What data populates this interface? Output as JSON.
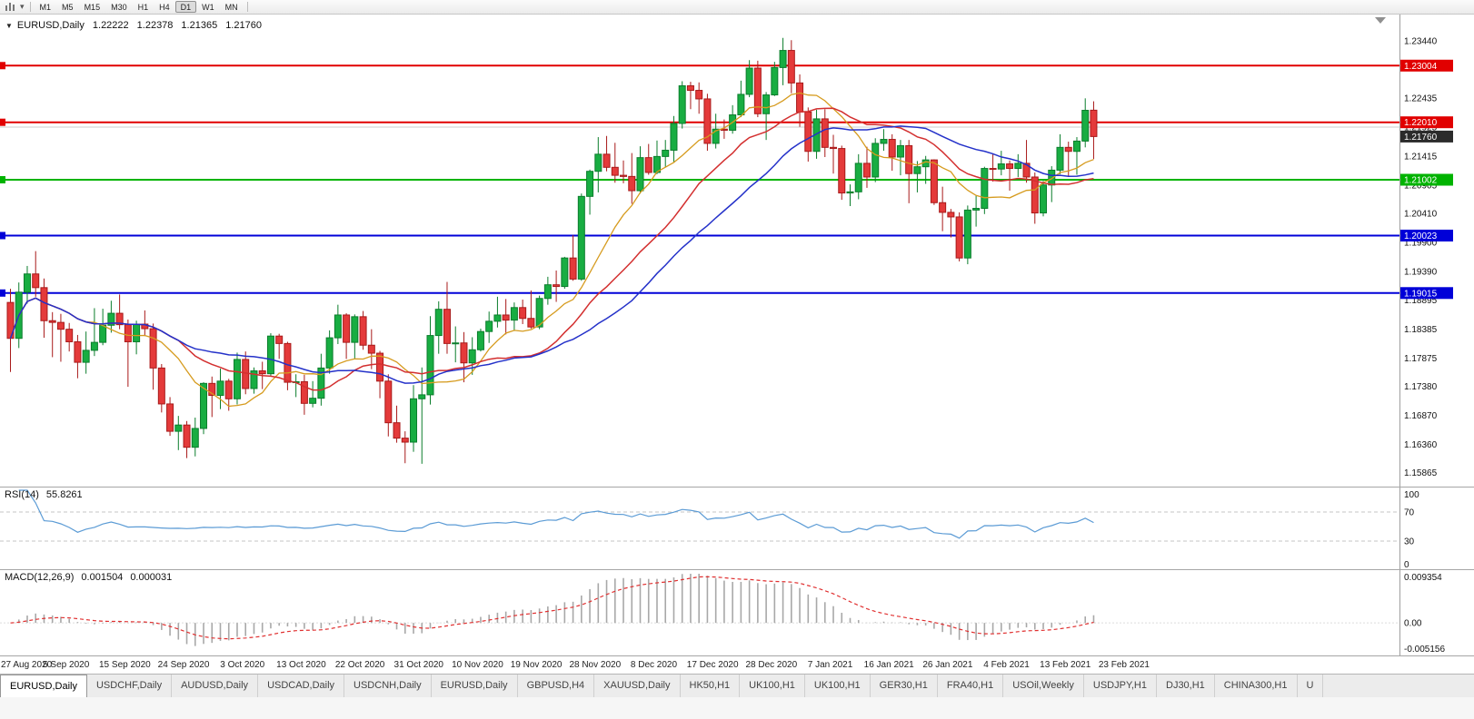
{
  "toolbar": {
    "timeframes": [
      {
        "label": "M1",
        "active": false
      },
      {
        "label": "M5",
        "active": false
      },
      {
        "label": "M15",
        "active": false
      },
      {
        "label": "M30",
        "active": false
      },
      {
        "label": "H1",
        "active": false
      },
      {
        "label": "H4",
        "active": false
      },
      {
        "label": "D1",
        "active": true
      },
      {
        "label": "W1",
        "active": false
      },
      {
        "label": "MN",
        "active": false
      }
    ]
  },
  "chart": {
    "header": {
      "symbol": "EURUSD,Daily",
      "open": "1.22222",
      "high": "1.22378",
      "low": "1.21365",
      "close": "1.21760"
    },
    "price_axis": {
      "ticks": [
        "1.23440",
        "1.22435",
        "1.21925",
        "1.21415",
        "1.20905",
        "1.20410",
        "1.19900",
        "1.19390",
        "1.18895",
        "1.18385",
        "1.17875",
        "1.17380",
        "1.16870",
        "1.16360",
        "1.15865"
      ]
    },
    "levels": [
      {
        "label": "1.23004",
        "price": 1.23004,
        "color": "#e10000",
        "line": true
      },
      {
        "label": "1.22010",
        "price": 1.2201,
        "color": "#e10000",
        "line": true
      },
      {
        "label": "1.21760",
        "price": 1.2176,
        "color": "#2b2b2b",
        "line": false,
        "current": true
      },
      {
        "label": "1.21002",
        "price": 1.21002,
        "color": "#00b300",
        "line": true
      },
      {
        "label": "1.20023",
        "price": 1.20023,
        "color": "#0000d8",
        "line": true
      },
      {
        "label": "1.19015",
        "price": 1.19015,
        "color": "#0000d8",
        "line": true
      }
    ],
    "separator_line": {
      "price": 1.21925,
      "color": "#cccccc"
    },
    "date_labels": [
      "27 Aug 2020",
      "5 Sep 2020",
      "15 Sep 2020",
      "24 Sep 2020",
      "3 Oct 2020",
      "13 Oct 2020",
      "22 Oct 2020",
      "31 Oct 2020",
      "10 Nov 2020",
      "19 Nov 2020",
      "28 Nov 2020",
      "8 Dec 2020",
      "17 Dec 2020",
      "28 Dec 2020",
      "7 Jan 2021",
      "16 Jan 2021",
      "26 Jan 2021",
      "4 Feb 2021",
      "13 Feb 2021",
      "23 Feb 2021"
    ],
    "colors": {
      "bull": "#18ad42",
      "bull_border": "#0b7d2c",
      "bear": "#e43a3a",
      "bear_border": "#a81a1a",
      "axis_text": "#111111"
    }
  },
  "chart_data": {
    "type": "candlestick",
    "symbol": "EURUSD",
    "timeframe": "Daily",
    "ylim": [
      1.1562,
      1.239
    ],
    "candles": [
      [
        1.1885,
        1.1909,
        1.1763,
        1.1822
      ],
      [
        1.1822,
        1.192,
        1.1805,
        1.1903
      ],
      [
        1.1903,
        1.1949,
        1.1883,
        1.1935
      ],
      [
        1.1935,
        1.1975,
        1.1895,
        1.1911
      ],
      [
        1.1911,
        1.1927,
        1.1823,
        1.1853
      ],
      [
        1.1853,
        1.1868,
        1.1789,
        1.185
      ],
      [
        1.185,
        1.1865,
        1.1781,
        1.1838
      ],
      [
        1.1838,
        1.1849,
        1.1799,
        1.1816
      ],
      [
        1.1816,
        1.1828,
        1.1752,
        1.178
      ],
      [
        1.178,
        1.1834,
        1.176,
        1.1801
      ],
      [
        1.1801,
        1.1875,
        1.1791,
        1.1815
      ],
      [
        1.1815,
        1.1874,
        1.181,
        1.1845
      ],
      [
        1.1845,
        1.1888,
        1.1832,
        1.1866
      ],
      [
        1.1866,
        1.1899,
        1.1838,
        1.1846
      ],
      [
        1.1846,
        1.1855,
        1.1737,
        1.1816
      ],
      [
        1.1816,
        1.1853,
        1.1794,
        1.1847
      ],
      [
        1.1847,
        1.1871,
        1.1826,
        1.1839
      ],
      [
        1.1839,
        1.1848,
        1.1732,
        1.177
      ],
      [
        1.177,
        1.1777,
        1.1692,
        1.1707
      ],
      [
        1.1707,
        1.1719,
        1.1651,
        1.1659
      ],
      [
        1.1659,
        1.1686,
        1.1626,
        1.167
      ],
      [
        1.167,
        1.1677,
        1.1612,
        1.1631
      ],
      [
        1.1631,
        1.1683,
        1.1615,
        1.1664
      ],
      [
        1.1664,
        1.1745,
        1.1654,
        1.1743
      ],
      [
        1.1743,
        1.1755,
        1.1684,
        1.1722
      ],
      [
        1.1722,
        1.1769,
        1.1698,
        1.1747
      ],
      [
        1.1747,
        1.1751,
        1.1695,
        1.1716
      ],
      [
        1.1716,
        1.1797,
        1.1706,
        1.1785
      ],
      [
        1.1785,
        1.1799,
        1.1724,
        1.1734
      ],
      [
        1.1734,
        1.1771,
        1.1725,
        1.1765
      ],
      [
        1.1765,
        1.1781,
        1.1733,
        1.176
      ],
      [
        1.176,
        1.1831,
        1.1755,
        1.1826
      ],
      [
        1.1826,
        1.183,
        1.1786,
        1.1813
      ],
      [
        1.1813,
        1.1816,
        1.1731,
        1.1745
      ],
      [
        1.1745,
        1.1759,
        1.1719,
        1.1746
      ],
      [
        1.1746,
        1.1758,
        1.1688,
        1.1708
      ],
      [
        1.1708,
        1.1747,
        1.1701,
        1.1717
      ],
      [
        1.1717,
        1.1795,
        1.1704,
        1.177
      ],
      [
        1.177,
        1.1836,
        1.176,
        1.1823
      ],
      [
        1.1823,
        1.1881,
        1.1812,
        1.1863
      ],
      [
        1.1863,
        1.1866,
        1.1786,
        1.1815
      ],
      [
        1.1815,
        1.1864,
        1.1785,
        1.186
      ],
      [
        1.186,
        1.187,
        1.1802,
        1.181
      ],
      [
        1.181,
        1.1838,
        1.1768,
        1.1796
      ],
      [
        1.1796,
        1.18,
        1.1717,
        1.1747
      ],
      [
        1.1747,
        1.1759,
        1.165,
        1.1674
      ],
      [
        1.1674,
        1.1704,
        1.1639,
        1.1647
      ],
      [
        1.1647,
        1.1659,
        1.1603,
        1.164
      ],
      [
        1.164,
        1.174,
        1.1623,
        1.1716
      ],
      [
        1.1716,
        1.1771,
        1.1602,
        1.1723
      ],
      [
        1.1723,
        1.1861,
        1.1706,
        1.1827
      ],
      [
        1.1827,
        1.1887,
        1.1795,
        1.1873
      ],
      [
        1.1873,
        1.1921,
        1.1795,
        1.1813
      ],
      [
        1.1813,
        1.1843,
        1.178,
        1.1814
      ],
      [
        1.1814,
        1.1833,
        1.1745,
        1.1779
      ],
      [
        1.1779,
        1.1824,
        1.1758,
        1.1802
      ],
      [
        1.1802,
        1.1839,
        1.1799,
        1.1834
      ],
      [
        1.1834,
        1.1869,
        1.1814,
        1.1852
      ],
      [
        1.1852,
        1.1895,
        1.1841,
        1.1863
      ],
      [
        1.1863,
        1.1891,
        1.1829,
        1.1854
      ],
      [
        1.1854,
        1.1885,
        1.1835,
        1.1876
      ],
      [
        1.1876,
        1.189,
        1.1847,
        1.1857
      ],
      [
        1.1857,
        1.1906,
        1.1839,
        1.1842
      ],
      [
        1.1842,
        1.1897,
        1.1838,
        1.1892
      ],
      [
        1.1892,
        1.193,
        1.1881,
        1.1916
      ],
      [
        1.1916,
        1.1941,
        1.1886,
        1.1913
      ],
      [
        1.1913,
        1.1965,
        1.1909,
        1.1963
      ],
      [
        1.1963,
        1.2003,
        1.1923,
        1.1926
      ],
      [
        1.1926,
        1.2076,
        1.1923,
        1.2071
      ],
      [
        1.2071,
        1.2118,
        1.2039,
        1.2115
      ],
      [
        1.2115,
        1.2175,
        1.2078,
        1.2145
      ],
      [
        1.2145,
        1.2177,
        1.2115,
        1.2122
      ],
      [
        1.2122,
        1.2165,
        1.2095,
        1.2108
      ],
      [
        1.2108,
        1.2134,
        1.2094,
        1.2106
      ],
      [
        1.2106,
        1.2147,
        1.2058,
        1.2081
      ],
      [
        1.2081,
        1.2159,
        1.2076,
        1.2139
      ],
      [
        1.2139,
        1.2163,
        1.2109,
        1.2113
      ],
      [
        1.2113,
        1.2169,
        1.211,
        1.2141
      ],
      [
        1.2141,
        1.217,
        1.2122,
        1.2152
      ],
      [
        1.2152,
        1.2212,
        1.213,
        1.2199
      ],
      [
        1.2199,
        1.2273,
        1.219,
        1.2265
      ],
      [
        1.2265,
        1.2272,
        1.2224,
        1.2257
      ],
      [
        1.2257,
        1.2271,
        1.2216,
        1.2242
      ],
      [
        1.2242,
        1.2251,
        1.2151,
        1.2164
      ],
      [
        1.2164,
        1.2216,
        1.2155,
        1.2189
      ],
      [
        1.2189,
        1.2206,
        1.2172,
        1.2187
      ],
      [
        1.2187,
        1.2231,
        1.2181,
        1.2214
      ],
      [
        1.2214,
        1.2274,
        1.221,
        1.225
      ],
      [
        1.225,
        1.231,
        1.2245,
        1.2296
      ],
      [
        1.2296,
        1.2309,
        1.221,
        1.2216
      ],
      [
        1.2216,
        1.2254,
        1.217,
        1.2249
      ],
      [
        1.2249,
        1.2307,
        1.2247,
        1.2297
      ],
      [
        1.2297,
        1.2349,
        1.2266,
        1.2327
      ],
      [
        1.2327,
        1.2345,
        1.2252,
        1.227
      ],
      [
        1.227,
        1.2285,
        1.2193,
        1.2219
      ],
      [
        1.2219,
        1.2227,
        1.2132,
        1.215
      ],
      [
        1.215,
        1.2223,
        1.2137,
        1.2207
      ],
      [
        1.2207,
        1.2224,
        1.214,
        1.2157
      ],
      [
        1.2157,
        1.2179,
        1.2111,
        1.2155
      ],
      [
        1.2155,
        1.216,
        1.2065,
        1.2077
      ],
      [
        1.2077,
        1.2092,
        1.2054,
        1.2079
      ],
      [
        1.2079,
        1.2145,
        1.2066,
        1.2129
      ],
      [
        1.2129,
        1.2158,
        1.2086,
        1.2105
      ],
      [
        1.2105,
        1.2173,
        1.2096,
        1.2164
      ],
      [
        1.2164,
        1.2189,
        1.2151,
        1.2171
      ],
      [
        1.2171,
        1.218,
        1.2116,
        1.214
      ],
      [
        1.214,
        1.217,
        1.2108,
        1.216
      ],
      [
        1.216,
        1.217,
        1.2059,
        1.2111
      ],
      [
        1.2111,
        1.2133,
        1.2078,
        1.2123
      ],
      [
        1.2123,
        1.2142,
        1.2093,
        1.2135
      ],
      [
        1.2135,
        1.2136,
        1.2056,
        1.206
      ],
      [
        1.206,
        1.2088,
        1.201,
        1.2043
      ],
      [
        1.2043,
        1.2049,
        1.1999,
        1.2035
      ],
      [
        1.2035,
        1.2043,
        1.1957,
        1.1963
      ],
      [
        1.1963,
        1.2055,
        1.1952,
        1.2047
      ],
      [
        1.2047,
        1.2072,
        1.2018,
        1.205
      ],
      [
        1.205,
        1.2123,
        1.204,
        1.212
      ],
      [
        1.212,
        1.2145,
        1.2097,
        1.2119
      ],
      [
        1.2119,
        1.2151,
        1.2108,
        1.2128
      ],
      [
        1.2128,
        1.2134,
        1.2081,
        1.212
      ],
      [
        1.212,
        1.2145,
        1.2105,
        1.2129
      ],
      [
        1.2129,
        1.217,
        1.2095,
        1.2105
      ],
      [
        1.2105,
        1.2113,
        1.2023,
        1.2042
      ],
      [
        1.2042,
        1.2098,
        1.2036,
        1.2091
      ],
      [
        1.2091,
        1.2124,
        1.2061,
        1.2117
      ],
      [
        1.2117,
        1.218,
        1.211,
        1.2157
      ],
      [
        1.2157,
        1.2167,
        1.2106,
        1.215
      ],
      [
        1.215,
        1.2175,
        1.2109,
        1.2168
      ],
      [
        1.2168,
        1.2243,
        1.2157,
        1.2222
      ],
      [
        1.22222,
        1.22378,
        1.21365,
        1.2176
      ]
    ],
    "moving_averages": [
      {
        "name": "fast",
        "period": 10,
        "color": "#d69b1e",
        "width": 1.3
      },
      {
        "name": "medium",
        "period": 20,
        "color": "#d32f2f",
        "width": 1.5
      },
      {
        "name": "slow",
        "period": 30,
        "color": "#2431c9",
        "width": 1.5
      }
    ]
  },
  "rsi": {
    "label": "RSI(14)",
    "value": "55.8261",
    "period": 14,
    "scale_labels": [
      "100",
      "70",
      "30",
      "0"
    ],
    "upper_level": 70,
    "lower_level": 30,
    "line_color": "#5b9bd5"
  },
  "macd": {
    "label": "MACD(12,26,9)",
    "main_value": "0.001504",
    "signal_value": "0.000031",
    "fast": 12,
    "slow": 26,
    "signal": 9,
    "scale_labels": [
      "0.009354",
      "0.00",
      "-0.005156"
    ],
    "scale_max": 0.009354,
    "scale_min": -0.005156,
    "histogram_color": "#a8a8a8",
    "signal_color": "#e03030"
  },
  "tabs": [
    {
      "label": "EURUSD,Daily",
      "active": true
    },
    {
      "label": "USDCHF,Daily",
      "active": false
    },
    {
      "label": "AUDUSD,Daily",
      "active": false
    },
    {
      "label": "USDCAD,Daily",
      "active": false
    },
    {
      "label": "USDCNH,Daily",
      "active": false
    },
    {
      "label": "EURUSD,Daily",
      "active": false
    },
    {
      "label": "GBPUSD,H4",
      "active": false
    },
    {
      "label": "XAUUSD,Daily",
      "active": false
    },
    {
      "label": "HK50,H1",
      "active": false
    },
    {
      "label": "UK100,H1",
      "active": false
    },
    {
      "label": "UK100,H1",
      "active": false
    },
    {
      "label": "GER30,H1",
      "active": false
    },
    {
      "label": "FRA40,H1",
      "active": false
    },
    {
      "label": "USOil,Weekly",
      "active": false
    },
    {
      "label": "USDJPY,H1",
      "active": false
    },
    {
      "label": "DJ30,H1",
      "active": false
    },
    {
      "label": "CHINA300,H1",
      "active": false
    },
    {
      "label": "U",
      "active": false
    }
  ]
}
